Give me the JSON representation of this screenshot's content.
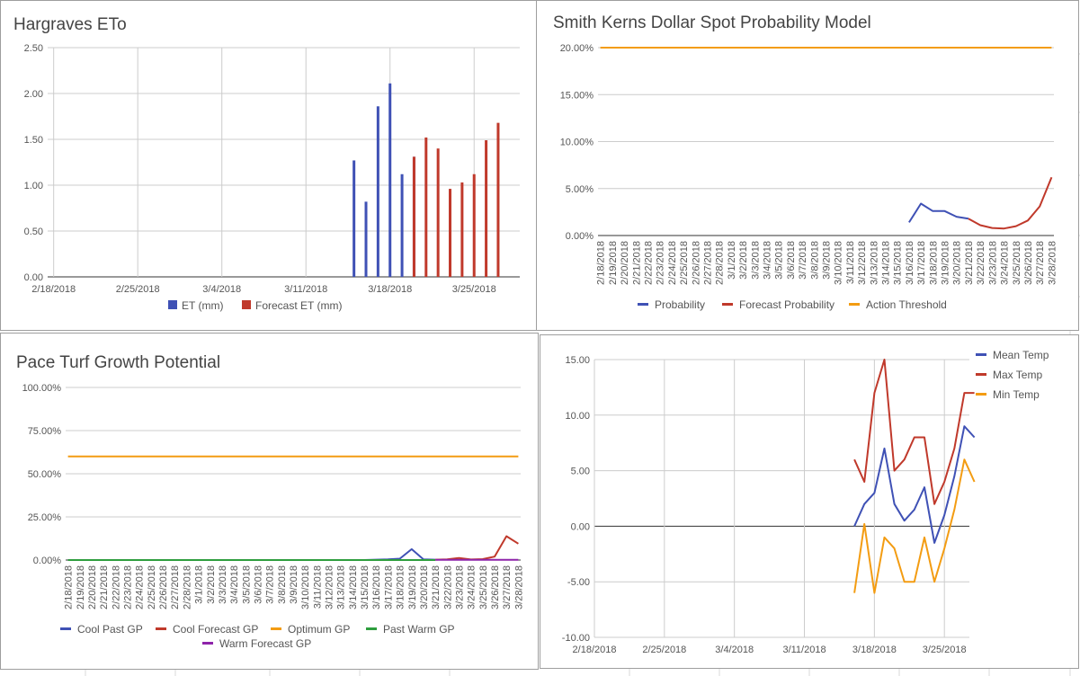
{
  "panels": [
    {
      "id": "hargraves",
      "title": "Hargraves ETo",
      "chart_data": {
        "type": "bar",
        "title": "Hargraves ETo",
        "ylim": [
          0,
          2.5
        ],
        "y_ticks": [
          "0.00",
          "0.50",
          "1.00",
          "1.50",
          "2.00",
          "2.50"
        ],
        "x_ticks": [
          "2/18/2018",
          "2/25/2018",
          "3/4/2018",
          "3/11/2018",
          "3/18/2018",
          "3/25/2018"
        ],
        "legend_position": "bottom",
        "series": [
          {
            "name": "ET (mm)",
            "color": "#3f51b5",
            "x": [
              "3/15/2018",
              "3/16/2018",
              "3/17/2018",
              "3/18/2018",
              "3/19/2018",
              "3/20/2018"
            ],
            "values": [
              1.27,
              0.82,
              1.86,
              2.11,
              1.12,
              1.31
            ]
          },
          {
            "name": "Forecast ET (mm)",
            "color": "#c0392b",
            "x": [
              "3/20/2018",
              "3/21/2018",
              "3/22/2018",
              "3/23/2018",
              "3/24/2018",
              "3/25/2018",
              "3/26/2018",
              "3/27/2018"
            ],
            "values": [
              1.31,
              1.52,
              1.4,
              0.96,
              1.03,
              1.12,
              1.49,
              1.68
            ]
          }
        ]
      }
    },
    {
      "id": "dollar-spot",
      "title": "Smith Kerns Dollar Spot Probability Model",
      "chart_data": {
        "type": "line",
        "title": "Smith Kerns Dollar Spot Probability Model",
        "ylim": [
          0,
          20
        ],
        "y_ticks": [
          "0.00%",
          "5.00%",
          "10.00%",
          "15.00%",
          "20.00%"
        ],
        "x_ticks": [
          "2/18/2018",
          "2/19/2018",
          "2/20/2018",
          "2/21/2018",
          "2/22/2018",
          "2/23/2018",
          "2/24/2018",
          "2/25/2018",
          "2/26/2018",
          "2/27/2018",
          "2/28/2018",
          "3/1/2018",
          "3/2/2018",
          "3/3/2018",
          "3/4/2018",
          "3/5/2018",
          "3/6/2018",
          "3/7/2018",
          "3/8/2018",
          "3/9/2018",
          "3/10/2018",
          "3/11/2018",
          "3/12/2018",
          "3/13/2018",
          "3/14/2018",
          "3/15/2018",
          "3/16/2018",
          "3/17/2018",
          "3/18/2018",
          "3/19/2018",
          "3/20/2018",
          "3/21/2018",
          "3/22/2018",
          "3/23/2018",
          "3/24/2018",
          "3/25/2018",
          "3/26/2018",
          "3/27/2018",
          "3/28/2018"
        ],
        "legend_position": "bottom",
        "series": [
          {
            "name": "Probability",
            "color": "#3f51b5",
            "x": [
              "3/16/2018",
              "3/17/2018",
              "3/18/2018",
              "3/19/2018",
              "3/20/2018",
              "3/21/2018"
            ],
            "values": [
              1.4,
              3.4,
              2.6,
              2.6,
              2.0,
              1.8
            ]
          },
          {
            "name": "Forecast Probability",
            "color": "#c0392b",
            "x": [
              "3/21/2018",
              "3/22/2018",
              "3/23/2018",
              "3/24/2018",
              "3/25/2018",
              "3/26/2018",
              "3/27/2018",
              "3/28/2018"
            ],
            "values": [
              1.8,
              1.1,
              0.8,
              0.75,
              1.0,
              1.6,
              3.1,
              6.2
            ]
          },
          {
            "name": "Action Threshold",
            "color": "#f39c12",
            "x": [
              "2/18/2018",
              "3/28/2018"
            ],
            "values": [
              20,
              20
            ]
          }
        ]
      }
    },
    {
      "id": "pace-turf",
      "title": "Pace Turf Growth Potential",
      "chart_data": {
        "type": "line",
        "title": "Pace Turf Growth Potential",
        "ylim": [
          0,
          100
        ],
        "y_ticks": [
          "0.00%",
          "25.00%",
          "50.00%",
          "75.00%",
          "100.00%"
        ],
        "x_ticks": [
          "2/18/2018",
          "2/19/2018",
          "2/20/2018",
          "2/21/2018",
          "2/22/2018",
          "2/23/2018",
          "2/24/2018",
          "2/25/2018",
          "2/26/2018",
          "2/27/2018",
          "2/28/2018",
          "3/1/2018",
          "3/2/2018",
          "3/3/2018",
          "3/4/2018",
          "3/5/2018",
          "3/6/2018",
          "3/7/2018",
          "3/8/2018",
          "3/9/2018",
          "3/10/2018",
          "3/11/2018",
          "3/12/2018",
          "3/13/2018",
          "3/14/2018",
          "3/15/2018",
          "3/16/2018",
          "3/17/2018",
          "3/18/2018",
          "3/19/2018",
          "3/20/2018",
          "3/21/2018",
          "3/22/2018",
          "3/23/2018",
          "3/24/2018",
          "3/25/2018",
          "3/26/2018",
          "3/27/2018",
          "3/28/2018"
        ],
        "legend_position": "bottom",
        "series": [
          {
            "name": "Cool Past GP",
            "color": "#3f51b5",
            "x": [
              "2/18/2018",
              "3/15/2018",
              "3/16/2018",
              "3/17/2018",
              "3/18/2018",
              "3/19/2018",
              "3/20/2018",
              "3/21/2018"
            ],
            "values": [
              0,
              0,
              0.2,
              0.4,
              0.8,
              6.3,
              0.4,
              0.2
            ]
          },
          {
            "name": "Cool Forecast GP",
            "color": "#c0392b",
            "x": [
              "3/21/2018",
              "3/22/2018",
              "3/23/2018",
              "3/24/2018",
              "3/25/2018",
              "3/26/2018",
              "3/27/2018",
              "3/28/2018"
            ],
            "values": [
              0.2,
              0.4,
              1.2,
              0.3,
              0.5,
              2.0,
              13.8,
              9.5
            ]
          },
          {
            "name": "Optimum GP",
            "color": "#f39c12",
            "x": [
              "2/18/2018",
              "3/28/2018"
            ],
            "values": [
              60,
              60
            ]
          },
          {
            "name": "Past Warm GP",
            "color": "#2e9e3e",
            "x": [
              "2/18/2018",
              "3/21/2018"
            ],
            "values": [
              0,
              0
            ]
          },
          {
            "name": "Warm Forecast GP",
            "color": "#8e24aa",
            "x": [
              "3/21/2018",
              "3/28/2018"
            ],
            "values": [
              0.1,
              0.1
            ]
          }
        ]
      }
    },
    {
      "id": "temperature",
      "title": "",
      "chart_data": {
        "type": "line",
        "ylim": [
          -10,
          15
        ],
        "y_ticks": [
          "-10.00",
          "-5.00",
          "0.00",
          "5.00",
          "10.00",
          "15.00"
        ],
        "x_ticks": [
          "2/18/2018",
          "2/25/2018",
          "3/4/2018",
          "3/11/2018",
          "3/18/2018",
          "3/25/2018"
        ],
        "legend_position": "right",
        "series": [
          {
            "name": "Mean Temp",
            "color": "#3f51b5",
            "x": [
              "3/16/2018",
              "3/17/2018",
              "3/18/2018",
              "3/19/2018",
              "3/20/2018",
              "3/21/2018",
              "3/22/2018",
              "3/23/2018",
              "3/24/2018",
              "3/25/2018",
              "3/26/2018",
              "3/27/2018",
              "3/28/2018"
            ],
            "values": [
              0,
              2,
              3,
              7,
              2,
              0.5,
              1.5,
              3.5,
              -1.5,
              1,
              4.5,
              9,
              8
            ]
          },
          {
            "name": "Max Temp",
            "color": "#c0392b",
            "x": [
              "3/16/2018",
              "3/17/2018",
              "3/18/2018",
              "3/19/2018",
              "3/20/2018",
              "3/21/2018",
              "3/22/2018",
              "3/23/2018",
              "3/24/2018",
              "3/25/2018",
              "3/26/2018",
              "3/27/2018",
              "3/28/2018"
            ],
            "values": [
              6,
              4,
              12,
              15,
              5,
              6,
              8,
              8,
              2,
              4,
              7,
              12,
              12
            ]
          },
          {
            "name": "Min Temp",
            "color": "#f39c12",
            "x": [
              "3/16/2018",
              "3/17/2018",
              "3/18/2018",
              "3/19/2018",
              "3/20/2018",
              "3/21/2018",
              "3/22/2018",
              "3/23/2018",
              "3/24/2018",
              "3/25/2018",
              "3/26/2018",
              "3/27/2018",
              "3/28/2018"
            ],
            "values": [
              -6,
              0.2,
              -6,
              -1,
              -2,
              -5,
              -5,
              -1,
              -5,
              -2,
              1.5,
              6,
              4
            ]
          }
        ]
      }
    }
  ]
}
